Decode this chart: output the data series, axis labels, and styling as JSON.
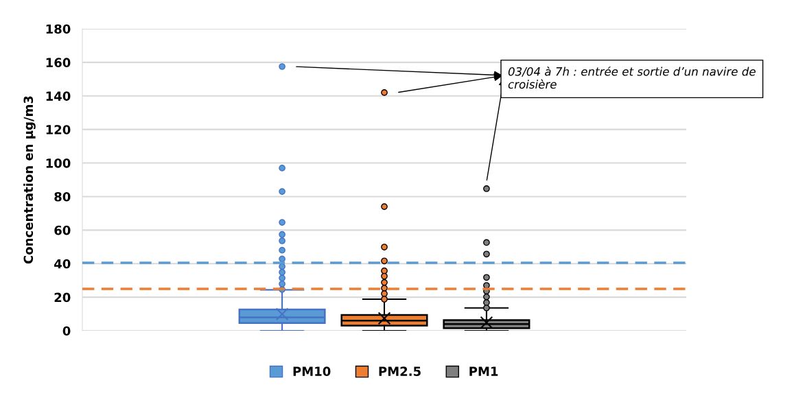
{
  "chart_data": {
    "type": "box",
    "ylabel": "Concentration en µg/m3",
    "categories": [
      null
    ],
    "series": [
      {
        "name": "PM10",
        "color": "#5b9bd5",
        "boxes": [
          {
            "low": 0,
            "q1": 4.6,
            "median": 8.0,
            "q3": 12.7,
            "high": 24.4,
            "mean": 9.9,
            "outliers": [
              157.5,
              97,
              83,
              64.6,
              57.4,
              53.6,
              48,
              42.8,
              38.3,
              34.9,
              31.4,
              27.9,
              24.6
            ]
          }
        ]
      },
      {
        "name": "PM2.5",
        "color": "#ed7d31",
        "boxes": [
          {
            "low": 0,
            "q1": 3.1,
            "median": 6.0,
            "q3": 9.4,
            "high": 18.8,
            "mean": 7.4,
            "outliers": [
              142,
              74,
              49.9,
              41.6,
              35.7,
              32.5,
              28.8,
              25.4,
              22.1,
              18.8
            ]
          }
        ]
      },
      {
        "name": "PM1",
        "color": "#7f7f7f",
        "boxes": [
          {
            "low": 0,
            "q1": 1.5,
            "median": 4.0,
            "q3": 6.3,
            "high": 13.6,
            "mean": 4.9,
            "outliers": [
              84.7,
              52.6,
              45.7,
              31.8,
              27,
              23.6,
              20.2,
              16.8,
              13.6
            ]
          }
        ]
      }
    ],
    "ylim": [
      0,
      180
    ],
    "yticks": [
      0,
      20,
      40,
      60,
      80,
      100,
      120,
      140,
      160,
      180
    ],
    "grid": "y",
    "legend": "bottom",
    "marker": "circle",
    "ref_lines": [
      {
        "axis": "y",
        "value": 40.5,
        "color": "#5b9bd5",
        "line_style": "dashed"
      },
      {
        "axis": "y",
        "value": 25,
        "color": "#ed7d31",
        "line_style": "dashed"
      }
    ],
    "annotations": [
      "03/04 à 7h : entrée et sortie d’un navire de croisière"
    ]
  }
}
